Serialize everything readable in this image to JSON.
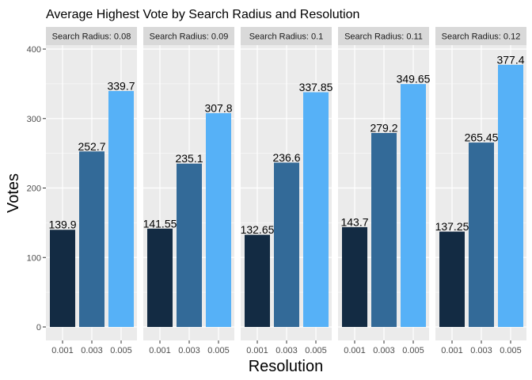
{
  "chart_data": {
    "type": "bar",
    "title": "Average Highest Vote by Search Radius and Resolution",
    "xlabel": "Resolution",
    "ylabel": "Votes",
    "ylim": [
      0,
      410
    ],
    "yticks": [
      0,
      100,
      200,
      300,
      400
    ],
    "categories": [
      "0.001",
      "0.003",
      "0.005"
    ],
    "bar_colors": [
      "#132b43",
      "#336a98",
      "#56b1f7"
    ],
    "panel_background": "#ebebeb",
    "strip_background": "#d9d9d9",
    "grid": true,
    "facets": [
      {
        "label": "Search Radius: 0.08",
        "values": [
          139.9,
          252.7,
          339.7
        ],
        "value_labels": [
          "139.9",
          "252.7",
          "339.7"
        ]
      },
      {
        "label": "Search Radius: 0.09",
        "values": [
          141.55,
          235.1,
          307.8
        ],
        "value_labels": [
          "141.55",
          "235.1",
          "307.8"
        ]
      },
      {
        "label": "Search Radius: 0.1",
        "values": [
          132.65,
          236.6,
          337.85
        ],
        "value_labels": [
          "132.65",
          "236.6",
          "337.85"
        ]
      },
      {
        "label": "Search Radius: 0.11",
        "values": [
          143.7,
          279.2,
          349.65
        ],
        "value_labels": [
          "143.7",
          "279.2",
          "349.65"
        ]
      },
      {
        "label": "Search Radius: 0.12",
        "values": [
          137.25,
          265.45,
          377.4
        ],
        "value_labels": [
          "137.25",
          "265.45",
          "377.4"
        ]
      }
    ]
  }
}
